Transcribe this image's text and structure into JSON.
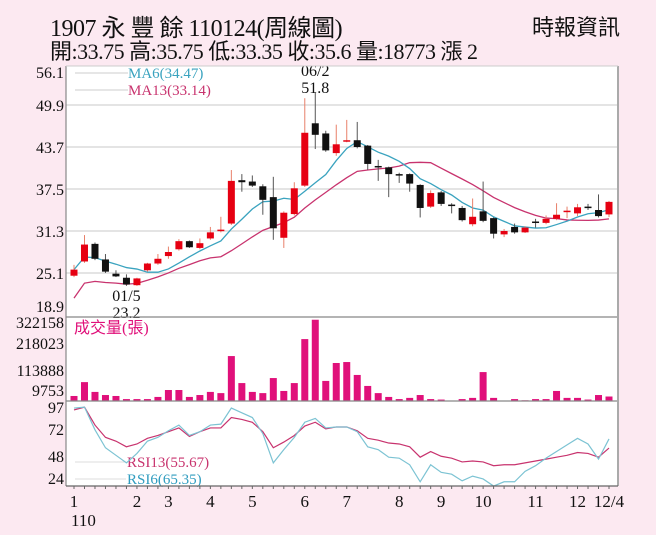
{
  "header": {
    "title": "1907  永 豐 餘 110124(周線圖)",
    "summary": "開:33.75 高:35.75 低:33.35 收:35.6 量:18773 漲 2",
    "source": "時報資訊"
  },
  "colors": {
    "up": "#e60012",
    "down": "#111111",
    "ma6": "#3aa3bf",
    "ma13": "#c8336e",
    "volume": "#e0107a",
    "rsi13": "#c8336e",
    "rsi6": "#7cc3d3",
    "grid": "#dcdcdc",
    "background": "#fce9f1"
  },
  "chart_data": [
    {
      "type": "candlestick",
      "panel": "price",
      "yticks": [
        "56.1",
        "49.9",
        "43.7",
        "37.5",
        "31.3",
        "25.1",
        "18.9"
      ],
      "ylim": [
        18.9,
        56.1
      ],
      "grid": true,
      "legend": [
        {
          "name": "MA6(34.47)",
          "period": 6
        },
        {
          "name": "MA13(33.14)",
          "period": 13
        }
      ],
      "annotations": [
        {
          "date": "06/2",
          "value": "51.8",
          "index": 23
        },
        {
          "date": "01/5",
          "value": "23.2",
          "index": 5
        }
      ],
      "ohlc": [
        [
          24.7,
          26.3,
          24.5,
          25.6
        ],
        [
          26.8,
          30.7,
          26.6,
          29.3
        ],
        [
          29.4,
          29.6,
          27.0,
          27.2
        ],
        [
          27.1,
          27.9,
          25.1,
          25.3
        ],
        [
          25.0,
          25.5,
          24.5,
          24.6
        ],
        [
          24.4,
          24.9,
          23.2,
          23.4
        ],
        [
          23.3,
          24.4,
          23.2,
          24.3
        ],
        [
          25.5,
          26.6,
          25.3,
          26.5
        ],
        [
          26.5,
          27.9,
          26.3,
          27.2
        ],
        [
          27.6,
          29.0,
          27.2,
          28.2
        ],
        [
          28.6,
          30.1,
          28.4,
          29.8
        ],
        [
          29.8,
          29.9,
          28.8,
          28.9
        ],
        [
          28.8,
          30.2,
          28.6,
          29.5
        ],
        [
          30.2,
          31.9,
          30.0,
          31.1
        ],
        [
          31.3,
          33.4,
          31.1,
          31.5
        ],
        [
          32.4,
          40.3,
          32.2,
          38.7
        ],
        [
          38.8,
          39.7,
          37.1,
          38.5
        ],
        [
          38.6,
          39.5,
          37.8,
          38.0
        ],
        [
          37.9,
          38.2,
          33.7,
          35.9
        ],
        [
          36.3,
          39.3,
          30.0,
          31.7
        ],
        [
          30.3,
          34.2,
          28.8,
          34.0
        ],
        [
          33.8,
          38.5,
          33.6,
          37.6
        ],
        [
          38.0,
          50.9,
          37.8,
          45.8
        ],
        [
          47.2,
          51.8,
          43.4,
          45.5
        ],
        [
          45.7,
          46.1,
          43.0,
          43.2
        ],
        [
          42.8,
          47.0,
          42.4,
          44.1
        ],
        [
          44.5,
          47.7,
          44.4,
          44.7
        ],
        [
          44.7,
          47.4,
          43.5,
          43.7
        ],
        [
          43.9,
          44.0,
          40.3,
          41.2
        ],
        [
          40.9,
          41.8,
          38.7,
          40.7
        ],
        [
          40.7,
          40.8,
          36.3,
          39.7
        ],
        [
          39.7,
          39.9,
          38.4,
          39.5
        ],
        [
          39.7,
          39.8,
          37.1,
          38.3
        ],
        [
          38.1,
          38.2,
          33.3,
          34.7
        ],
        [
          34.9,
          37.3,
          34.7,
          36.9
        ],
        [
          37.0,
          37.2,
          35.0,
          35.3
        ],
        [
          35.2,
          35.4,
          33.9,
          35.0
        ],
        [
          34.7,
          35.0,
          32.7,
          32.9
        ],
        [
          32.3,
          36.1,
          32.0,
          33.4
        ],
        [
          34.2,
          38.6,
          32.6,
          32.8
        ],
        [
          33.2,
          33.3,
          30.2,
          30.9
        ],
        [
          30.8,
          31.6,
          30.4,
          31.3
        ],
        [
          31.9,
          32.4,
          30.9,
          31.1
        ],
        [
          31.1,
          32.0,
          31.0,
          31.8
        ],
        [
          32.7,
          33.1,
          31.8,
          32.5
        ],
        [
          32.5,
          33.6,
          32.3,
          33.1
        ],
        [
          33.1,
          35.4,
          32.9,
          33.7
        ],
        [
          34.1,
          34.9,
          33.2,
          34.3
        ],
        [
          33.9,
          35.3,
          33.5,
          34.8
        ],
        [
          34.9,
          35.3,
          34.4,
          34.7
        ],
        [
          34.4,
          36.7,
          33.3,
          33.5
        ],
        [
          33.75,
          35.75,
          33.35,
          35.6
        ]
      ]
    },
    {
      "type": "bar",
      "panel": "volume",
      "title": "成交量(張)",
      "yticks": [
        "322158",
        "218023",
        "113888",
        "9753"
      ],
      "values": [
        21000,
        79000,
        38000,
        25000,
        21000,
        8000,
        8000,
        8000,
        17000,
        46000,
        46000,
        17000,
        25000,
        38000,
        33000,
        188000,
        75000,
        38000,
        33000,
        96000,
        42000,
        75000,
        259000,
        340000,
        84000,
        159000,
        163000,
        109000,
        63000,
        33000,
        17000,
        8000,
        13000,
        25000,
        8000,
        6000,
        2000,
        8000,
        13000,
        121000,
        13000,
        2000,
        8000,
        3000,
        8000,
        8000,
        42000,
        13000,
        13000,
        6000,
        25000,
        18773
      ]
    },
    {
      "type": "line",
      "panel": "rsi",
      "yticks": [
        "97",
        "72",
        "48",
        "24"
      ],
      "series": [
        {
          "name": "RSI13(55.67)",
          "values": [
            96,
            99,
            80,
            67,
            63,
            57,
            60,
            66,
            69,
            73,
            77,
            68,
            73,
            77,
            77,
            88,
            86,
            83,
            73,
            56,
            62,
            69,
            79,
            83,
            76,
            78,
            78,
            74,
            66,
            64,
            61,
            60,
            57,
            46,
            52,
            47,
            45,
            41,
            42,
            41,
            37,
            38,
            38,
            40,
            42,
            44,
            46,
            48,
            51,
            50,
            46,
            55.67
          ]
        },
        {
          "name": "RSI6(65.35)",
          "values": [
            98,
            99,
            75,
            56,
            48,
            40,
            50,
            63,
            67,
            74,
            80,
            69,
            73,
            80,
            81,
            98,
            93,
            88,
            71,
            40,
            54,
            67,
            83,
            87,
            77,
            78,
            78,
            73,
            57,
            54,
            46,
            45,
            38,
            20,
            38,
            30,
            28,
            21,
            26,
            23,
            15.5,
            20,
            20,
            31,
            37,
            45,
            52,
            59,
            66,
            60,
            44,
            65.35
          ]
        }
      ]
    }
  ],
  "xaxis": {
    "labels": [
      {
        "text": "1",
        "index": 0
      },
      {
        "text": "2",
        "index": 6
      },
      {
        "text": "3",
        "index": 9
      },
      {
        "text": "4",
        "index": 13
      },
      {
        "text": "5",
        "index": 17
      },
      {
        "text": "6",
        "index": 22
      },
      {
        "text": "7",
        "index": 26
      },
      {
        "text": "8",
        "index": 31
      },
      {
        "text": "9",
        "index": 35
      },
      {
        "text": "10",
        "index": 39
      },
      {
        "text": "11",
        "index": 44
      },
      {
        "text": "12",
        "index": 48
      },
      {
        "text": "12/4",
        "index": 51
      }
    ],
    "year": "110"
  }
}
